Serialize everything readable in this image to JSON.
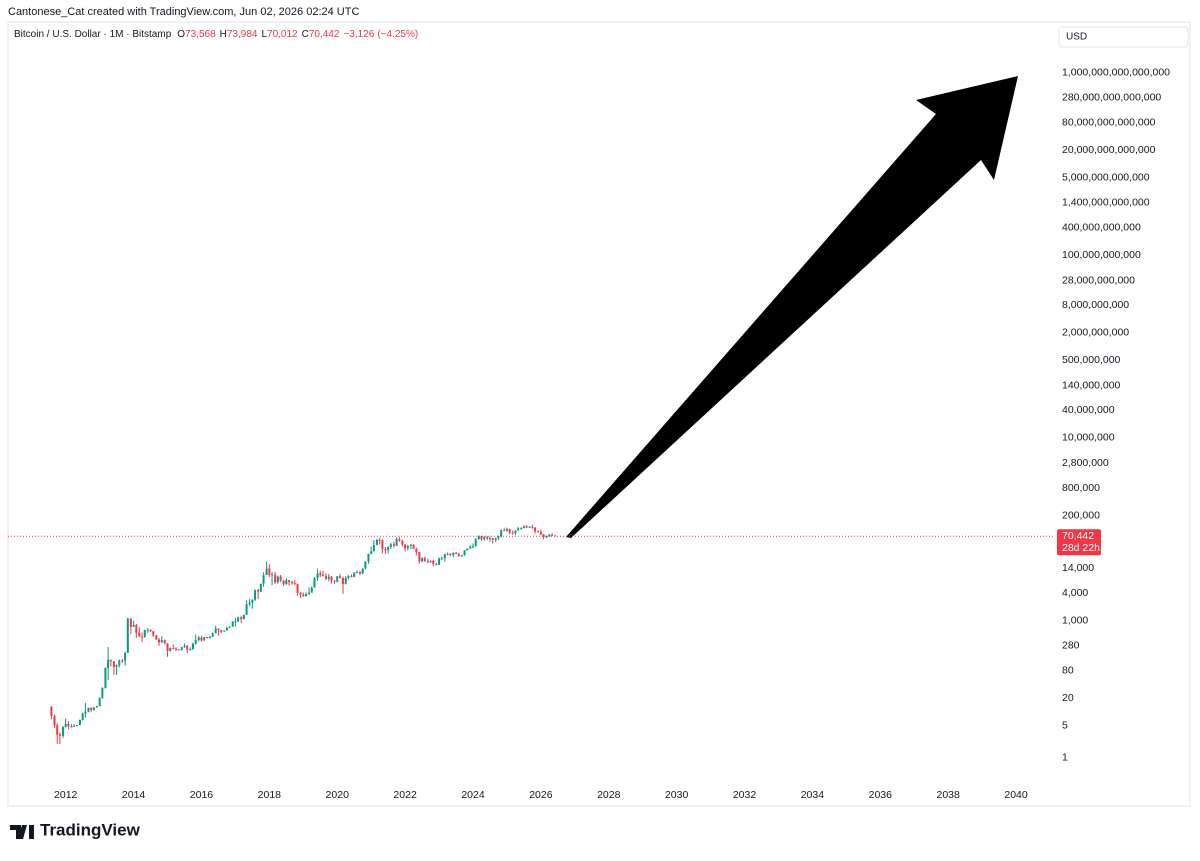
{
  "chart_data": {
    "type": "candlestick",
    "attribution": "Cantonese_Cat created with TradingView.com, Jun 02, 2026 02:24 UTC",
    "title": "Bitcoin / U.S. Dollar · 1M · Bitstamp",
    "ohlc_legend": [
      {
        "prefix": "O",
        "value": 73568,
        "label": "73,568"
      },
      {
        "prefix": "H",
        "value": 73984,
        "label": "73,984"
      },
      {
        "prefix": "L",
        "value": 70012,
        "label": "70,012"
      },
      {
        "prefix": "C",
        "value": 70442,
        "label": "70,442"
      }
    ],
    "change": {
      "value": -3126,
      "label": "−3,126"
    },
    "change_percent": {
      "value": -4.25,
      "label": "(−4.25%)"
    },
    "currency": "USD",
    "brand": "TradingView",
    "last_price": {
      "value": 70442,
      "label": "70,442"
    },
    "countdown": "28d 22h",
    "up_color": "#089981",
    "down_color": "#f23645",
    "log_scale": true,
    "grid": false,
    "xlim": [
      2010.3,
      2041
    ],
    "xticks": [
      2012,
      2014,
      2016,
      2018,
      2020,
      2022,
      2024,
      2026,
      2028,
      2030,
      2032,
      2034,
      2036,
      2038,
      2040
    ],
    "ylim": [
      0.36,
      4000000000000000
    ],
    "yticks": [
      1,
      5,
      20,
      80,
      280,
      {
        "value": 1000,
        "label": "1,000"
      },
      {
        "value": 4000,
        "label": "4,000"
      },
      {
        "value": 14000,
        "label": "14,000"
      },
      {
        "value": 200000,
        "label": "200,000"
      },
      {
        "value": 800000,
        "label": "800,000"
      },
      {
        "value": 2800000,
        "label": "2,800,000"
      },
      {
        "value": 10000000,
        "label": "10,000,000"
      },
      {
        "value": 40000000,
        "label": "40,000,000"
      },
      {
        "value": 140000000,
        "label": "140,000,000"
      },
      {
        "value": 500000000,
        "label": "500,000,000"
      },
      {
        "value": 2000000000,
        "label": "2,000,000,000"
      },
      {
        "value": 8000000000,
        "label": "8,000,000,000"
      },
      {
        "value": 28000000000,
        "label": "28,000,000,000"
      },
      {
        "value": 100000000000,
        "label": "100,000,000,000"
      },
      {
        "value": 400000000000,
        "label": "400,000,000,000"
      },
      {
        "value": 1400000000000,
        "label": "1,400,000,000,000"
      },
      {
        "value": 5000000000000,
        "label": "5,000,000,000,000"
      },
      {
        "value": 20000000000000,
        "label": "20,000,000,000,000"
      },
      {
        "value": 80000000000000,
        "label": "80,000,000,000,000"
      },
      {
        "value": 280000000000000,
        "label": "280,000,000,000,000"
      },
      {
        "value": 1000000000000000,
        "label": "1,000,000,000,000,000"
      }
    ],
    "x": [
      2011.58,
      2011.67,
      2011.75,
      2011.83,
      2011.92,
      2012,
      2012.08,
      2012.17,
      2012.25,
      2012.33,
      2012.42,
      2012.5,
      2012.58,
      2012.67,
      2012.75,
      2012.83,
      2012.92,
      2013,
      2013.08,
      2013.17,
      2013.25,
      2013.33,
      2013.42,
      2013.5,
      2013.58,
      2013.67,
      2013.75,
      2013.83,
      2013.92,
      2014,
      2014.08,
      2014.17,
      2014.25,
      2014.33,
      2014.42,
      2014.5,
      2014.58,
      2014.67,
      2014.75,
      2014.83,
      2014.92,
      2015,
      2015.08,
      2015.17,
      2015.25,
      2015.33,
      2015.42,
      2015.5,
      2015.58,
      2015.67,
      2015.75,
      2015.83,
      2015.92,
      2016,
      2016.08,
      2016.17,
      2016.25,
      2016.33,
      2016.42,
      2016.5,
      2016.58,
      2016.67,
      2016.75,
      2016.83,
      2016.92,
      2017,
      2017.08,
      2017.17,
      2017.25,
      2017.33,
      2017.42,
      2017.5,
      2017.58,
      2017.67,
      2017.75,
      2017.83,
      2017.92,
      2018,
      2018.08,
      2018.17,
      2018.25,
      2018.33,
      2018.42,
      2018.5,
      2018.58,
      2018.67,
      2018.75,
      2018.83,
      2018.92,
      2019,
      2019.08,
      2019.17,
      2019.25,
      2019.33,
      2019.42,
      2019.5,
      2019.58,
      2019.67,
      2019.75,
      2019.83,
      2019.92,
      2020,
      2020.08,
      2020.17,
      2020.25,
      2020.33,
      2020.42,
      2020.5,
      2020.58,
      2020.67,
      2020.75,
      2020.83,
      2020.92,
      2021,
      2021.08,
      2021.17,
      2021.25,
      2021.33,
      2021.42,
      2021.5,
      2021.58,
      2021.67,
      2021.75,
      2021.83,
      2021.92,
      2022,
      2022.08,
      2022.17,
      2022.25,
      2022.33,
      2022.42,
      2022.5,
      2022.58,
      2022.67,
      2022.75,
      2022.83,
      2022.92,
      2023,
      2023.08,
      2023.17,
      2023.25,
      2023.33,
      2023.42,
      2023.5,
      2023.58,
      2023.67,
      2023.75,
      2023.83,
      2023.92,
      2024,
      2024.08,
      2024.17,
      2024.25,
      2024.33,
      2024.42,
      2024.5,
      2024.58,
      2024.67,
      2024.75,
      2024.83,
      2024.92,
      2025,
      2025.08,
      2025.17,
      2025.25,
      2025.33,
      2025.42,
      2025.5,
      2025.58,
      2025.67,
      2025.75,
      2025.83,
      2025.92,
      2026,
      2026.08,
      2026.17,
      2026.25,
      2026.33,
      2026.42
    ],
    "open": [
      13,
      8.2,
      5.1,
      3.2,
      3.0,
      4.7,
      5.5,
      4.9,
      4.9,
      5.0,
      5.2,
      6.7,
      9.3,
      10.2,
      12.4,
      11.2,
      12.6,
      13.5,
      20.4,
      33.4,
      93,
      139,
      129,
      97,
      106,
      135,
      133,
      198,
      1120,
      732,
      800,
      550,
      450,
      445,
      628,
      640,
      585,
      478,
      387,
      338,
      378,
      320,
      218,
      254,
      244,
      236,
      230,
      263,
      284,
      230,
      236,
      312,
      377,
      430,
      368,
      437,
      416,
      448,
      531,
      673,
      622,
      573,
      608,
      698,
      742,
      964,
      966,
      1190,
      1080,
      1348,
      2300,
      2480,
      2875,
      4700,
      4340,
      6450,
      9950,
      13850,
      10100,
      10300,
      6930,
      9240,
      7490,
      6390,
      7730,
      7000,
      6630,
      6310,
      4020,
      3740,
      3450,
      3830,
      4100,
      5300,
      8570,
      10820,
      10080,
      9600,
      8300,
      9150,
      7550,
      7190,
      9350,
      8550,
      6410,
      8630,
      9450,
      9140,
      11350,
      11660,
      10780,
      13800,
      19700,
      28950,
      33100,
      45200,
      58800,
      57700,
      37300,
      35000,
      41500,
      47100,
      43800,
      61300,
      57000,
      46200,
      38500,
      43200,
      45500,
      37700,
      31800,
      19900,
      23300,
      20050,
      19420,
      20490,
      17170,
      16540,
      23130,
      23140,
      28480,
      29250,
      27220,
      30480,
      29230,
      25940,
      26970,
      34660,
      37720,
      42280,
      42580,
      61180,
      71300,
      60650,
      67520,
      62680,
      64620,
      58970,
      63330,
      70220,
      96450,
      93430,
      102400,
      84350,
      82550,
      94210,
      104600,
      107100,
      115750,
      108250,
      114050,
      109600,
      90400,
      87500,
      78000,
      68000,
      70000,
      76000,
      73568
    ],
    "high": [
      13.5,
      8.8,
      5.6,
      3.6,
      4.9,
      7.2,
      6.3,
      5.4,
      5.4,
      5.2,
      6.9,
      9.7,
      16,
      12.5,
      12.8,
      12.9,
      13.7,
      21,
      35,
      95,
      266,
      140,
      130,
      110,
      140,
      145,
      210,
      1163,
      1100,
      1000,
      850,
      720,
      550,
      630,
      680,
      640,
      600,
      490,
      420,
      460,
      390,
      320,
      260,
      300,
      262,
      240,
      267,
      315,
      285,
      260,
      330,
      500,
      465,
      465,
      440,
      440,
      462,
      550,
      780,
      670,
      625,
      614,
      740,
      752,
      968,
      1150,
      1220,
      1280,
      1350,
      2760,
      3000,
      2940,
      4750,
      5000,
      6450,
      11400,
      19670,
      17250,
      11790,
      11700,
      9750,
      9970,
      7780,
      8480,
      7760,
      7420,
      7670,
      6550,
      4310,
      4080,
      4200,
      5350,
      5600,
      9000,
      13880,
      12300,
      12350,
      10930,
      10500,
      9510,
      7750,
      9580,
      10500,
      9180,
      9470,
      10060,
      10380,
      11440,
      12480,
      12070,
      14100,
      19890,
      29300,
      41990,
      58350,
      61780,
      64900,
      59500,
      41330,
      42300,
      50500,
      52900,
      67000,
      69000,
      59040,
      47970,
      45800,
      48200,
      47450,
      40000,
      31980,
      24650,
      25210,
      22800,
      20990,
      21480,
      18400,
      23960,
      25250,
      29190,
      30970,
      29820,
      31400,
      31800,
      30200,
      27500,
      35200,
      38420,
      44700,
      48970,
      64000,
      73800,
      72700,
      71950,
      71980,
      70000,
      65100,
      66500,
      73600,
      99800,
      108300,
      109600,
      102500,
      95000,
      95700,
      111900,
      110500,
      123200,
      124400,
      117900,
      126200,
      111000,
      94500,
      97900,
      79500,
      74000,
      79000,
      82000,
      73984
    ],
    "low": [
      7,
      4.5,
      2,
      2,
      2.7,
      4.6,
      4.2,
      4.6,
      4.7,
      4.9,
      5.2,
      6.5,
      7.5,
      9.9,
      9.8,
      10.6,
      12.5,
      13.4,
      19.5,
      33,
      50,
      100,
      65,
      65,
      95,
      118,
      103,
      198,
      500,
      730,
      420,
      440,
      345,
      420,
      540,
      560,
      440,
      380,
      280,
      320,
      305,
      162,
      212,
      235,
      215,
      226,
      220,
      255,
      198,
      225,
      235,
      300,
      350,
      348,
      366,
      405,
      412,
      440,
      530,
      470,
      535,
      596,
      605,
      695,
      740,
      750,
      930,
      890,
      1080,
      1340,
      2080,
      1830,
      2700,
      2970,
      4200,
      5550,
      11000,
      9000,
      6000,
      6430,
      6430,
      7060,
      5760,
      6070,
      5880,
      6100,
      6000,
      3560,
      3150,
      3350,
      3390,
      3660,
      4100,
      5300,
      7450,
      9050,
      9330,
      7730,
      7300,
      6530,
      6430,
      6860,
      8520,
      3850,
      6170,
      8130,
      8930,
      8970,
      11100,
      9880,
      10400,
      13200,
      17600,
      28700,
      32300,
      45000,
      47000,
      30000,
      28800,
      29300,
      37300,
      39600,
      43200,
      53250,
      41960,
      32950,
      34320,
      37170,
      37400,
      26700,
      17600,
      18800,
      19550,
      18150,
      18190,
      15480,
      16290,
      16500,
      21400,
      19570,
      27100,
      25880,
      24800,
      28920,
      25380,
      24900,
      26560,
      34100,
      37600,
      38500,
      41900,
      59100,
      56500,
      56550,
      58400,
      53500,
      49100,
      52550,
      58900,
      66800,
      90500,
      89200,
      78200,
      76600,
      74400,
      93400,
      98200,
      105100,
      107300,
      107300,
      104000,
      80600,
      84500,
      74500,
      60000,
      64000,
      68500,
      72000,
      70012
    ],
    "close": [
      8.2,
      5.1,
      3.2,
      3.0,
      4.7,
      5.5,
      4.9,
      4.9,
      5.0,
      5.2,
      6.7,
      9.3,
      10.2,
      12.4,
      11.2,
      12.6,
      13.5,
      20.4,
      33.4,
      93,
      139,
      129,
      97,
      106,
      135,
      133,
      198,
      1120,
      732,
      800,
      550,
      450,
      445,
      628,
      640,
      585,
      478,
      387,
      338,
      378,
      320,
      218,
      254,
      244,
      236,
      230,
      263,
      284,
      230,
      236,
      312,
      377,
      430,
      368,
      437,
      416,
      448,
      531,
      673,
      622,
      573,
      608,
      698,
      742,
      964,
      966,
      1190,
      1080,
      1348,
      2300,
      2480,
      2875,
      4700,
      4340,
      6450,
      9950,
      13850,
      10100,
      10300,
      6930,
      9240,
      7490,
      6390,
      7730,
      7000,
      6630,
      6310,
      4020,
      3740,
      3450,
      3830,
      4100,
      5300,
      8570,
      10820,
      10080,
      9600,
      8300,
      9150,
      7550,
      7190,
      9350,
      8550,
      6410,
      8630,
      9450,
      9140,
      11350,
      11660,
      10780,
      13800,
      19700,
      28950,
      33100,
      45200,
      58800,
      57700,
      37300,
      35000,
      41500,
      47100,
      43800,
      61300,
      57000,
      46200,
      38500,
      43200,
      45500,
      37700,
      31800,
      19900,
      23300,
      20050,
      19420,
      20490,
      17170,
      16540,
      23130,
      23140,
      28480,
      29250,
      27220,
      30480,
      29230,
      25940,
      26970,
      34660,
      37720,
      42280,
      42580,
      61180,
      71300,
      60650,
      67520,
      62680,
      64620,
      58970,
      63330,
      70220,
      96450,
      93430,
      102400,
      84350,
      82550,
      94210,
      104600,
      107100,
      115750,
      108250,
      114050,
      109600,
      90400,
      87500,
      78000,
      68000,
      70000,
      76000,
      73568,
      70442
    ]
  }
}
